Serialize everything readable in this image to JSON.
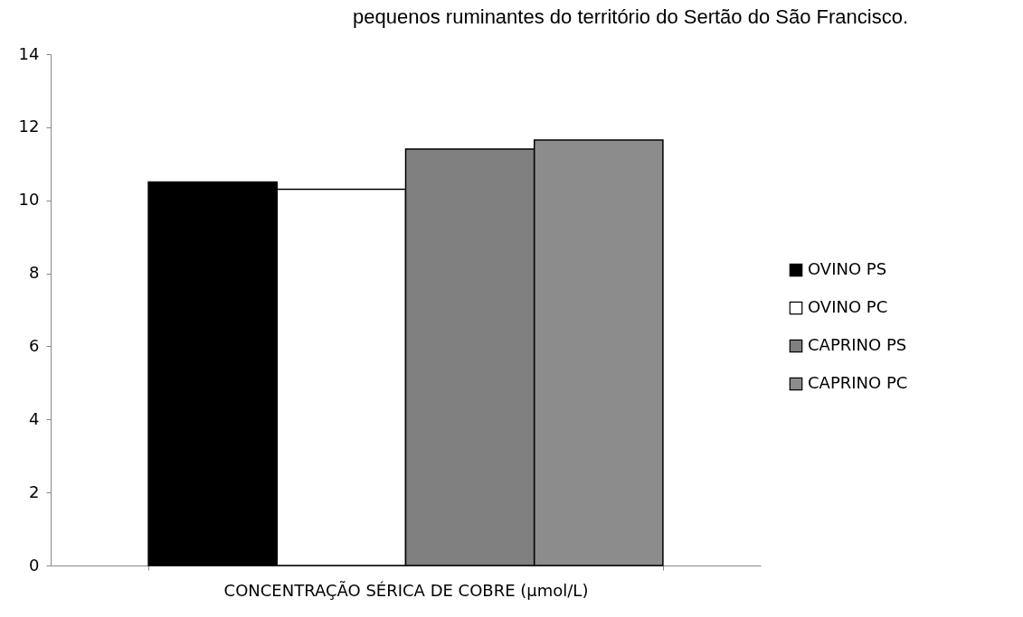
{
  "chart_data": {
    "type": "bar",
    "title": "pequenos ruminantes do território do Sertão do São Francisco.",
    "categories": [
      "CONCENTRAÇÃO SÉRICA DE COBRE (µmol/L)"
    ],
    "series": [
      {
        "name": "OVINO PS",
        "color": "#000000",
        "values": [
          10.5
        ]
      },
      {
        "name": "OVINO PC",
        "color": "#ffffff",
        "values": [
          10.3
        ]
      },
      {
        "name": "CAPRINO PS",
        "color": "#808080",
        "values": [
          11.4
        ]
      },
      {
        "name": "CAPRINO PC",
        "color": "#8c8c8c",
        "values": [
          11.65
        ]
      }
    ],
    "ylim": [
      0,
      14
    ],
    "yticks": [
      0,
      2,
      4,
      6,
      8,
      10,
      12,
      14
    ],
    "grid": false,
    "legend": "right"
  }
}
